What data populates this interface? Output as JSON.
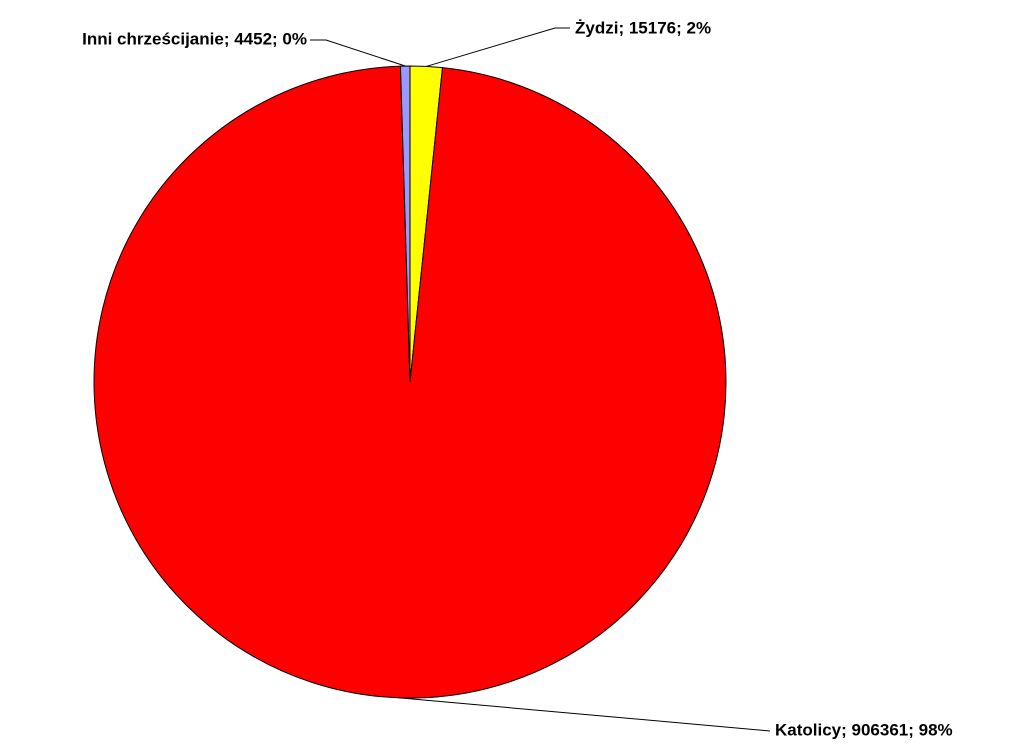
{
  "chart_data": {
    "type": "pie",
    "values": [
      15176,
      906361,
      4452
    ],
    "value_labels": [
      "Żydzi; 15176; 2%",
      "Katolicy; 906361; 98%",
      "Inni chrześcijanie; 4452; 0%"
    ],
    "colors": [
      "#ffff00",
      "#ff0000",
      "#9999ff"
    ]
  }
}
